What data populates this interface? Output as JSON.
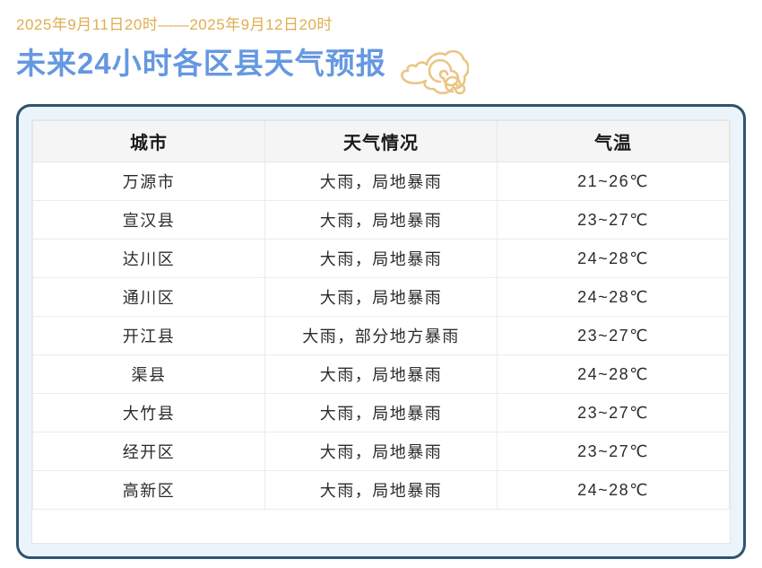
{
  "header": {
    "date_range": "2025年9月11日20时——2025年9月12日20时",
    "title": "未来24小时各区县天气预报"
  },
  "colors": {
    "title_blue": "#6598E2",
    "date_gold": "#DFAE52",
    "cloud_gold": "#EAC584",
    "panel_border": "#2E5470",
    "panel_bg": "#EBF4FB"
  },
  "icons": {
    "cloud": "auspicious-cloud-icon"
  },
  "table": {
    "columns": [
      "城市",
      "天气情况",
      "气温"
    ],
    "rows": [
      {
        "city": "万源市",
        "weather": "大雨，局地暴雨",
        "temp": "21~26℃"
      },
      {
        "city": "宣汉县",
        "weather": "大雨，局地暴雨",
        "temp": "23~27℃"
      },
      {
        "city": "达川区",
        "weather": "大雨，局地暴雨",
        "temp": "24~28℃"
      },
      {
        "city": "通川区",
        "weather": "大雨，局地暴雨",
        "temp": "24~28℃"
      },
      {
        "city": "开江县",
        "weather": "大雨，部分地方暴雨",
        "temp": "23~27℃"
      },
      {
        "city": "渠县",
        "weather": "大雨，局地暴雨",
        "temp": "24~28℃"
      },
      {
        "city": "大竹县",
        "weather": "大雨，局地暴雨",
        "temp": "23~27℃"
      },
      {
        "city": "经开区",
        "weather": "大雨，局地暴雨",
        "temp": "23~27℃"
      },
      {
        "city": "高新区",
        "weather": "大雨，局地暴雨",
        "temp": "24~28℃"
      }
    ]
  }
}
